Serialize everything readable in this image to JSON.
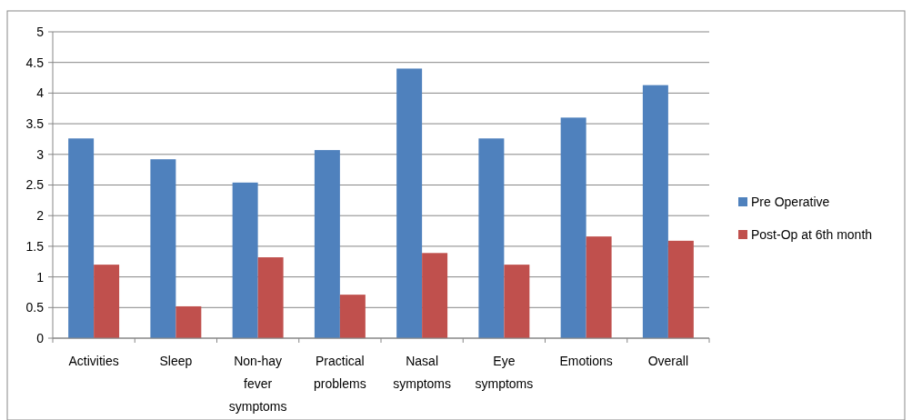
{
  "chart_data": {
    "type": "bar",
    "categories": [
      "Activities",
      "Sleep",
      "Non-hay fever symptoms",
      "Practical problems",
      "Nasal symptoms",
      "Eye symptoms",
      "Emotions",
      "Overall"
    ],
    "series": [
      {
        "name": "Pre Operative",
        "color": "#4f81bd",
        "values": [
          3.26,
          2.92,
          2.54,
          3.07,
          4.4,
          3.26,
          3.6,
          4.13
        ]
      },
      {
        "name": "Post-Op at 6th month",
        "color": "#c0504d",
        "values": [
          1.2,
          0.52,
          1.32,
          0.71,
          1.39,
          1.2,
          1.66,
          1.59
        ]
      }
    ],
    "ylim": [
      0,
      5
    ],
    "yticks": [
      0,
      {
        "value": 0.5,
        "label": "0.5"
      },
      1,
      {
        "value": 1.5,
        "label": "1.5"
      },
      2,
      {
        "value": 2.5,
        "label": "2.5"
      },
      3,
      {
        "value": 3.5,
        "label": "3.5"
      },
      4,
      {
        "value": 4.5,
        "label": "4.5"
      },
      5
    ],
    "grid": "y",
    "legend": "right"
  }
}
